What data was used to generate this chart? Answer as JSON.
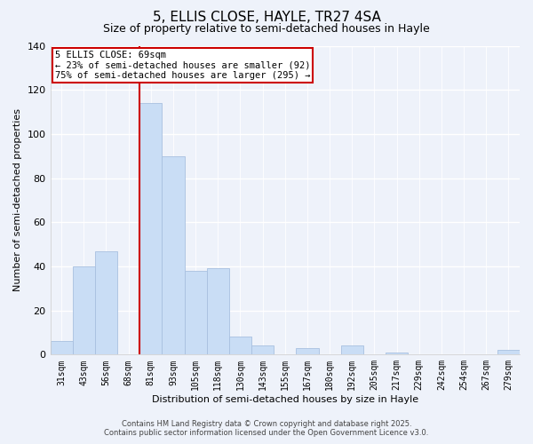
{
  "title": "5, ELLIS CLOSE, HAYLE, TR27 4SA",
  "subtitle": "Size of property relative to semi-detached houses in Hayle",
  "xlabel": "Distribution of semi-detached houses by size in Hayle",
  "ylabel": "Number of semi-detached properties",
  "bar_labels": [
    "31sqm",
    "43sqm",
    "56sqm",
    "68sqm",
    "81sqm",
    "93sqm",
    "105sqm",
    "118sqm",
    "130sqm",
    "143sqm",
    "155sqm",
    "167sqm",
    "180sqm",
    "192sqm",
    "205sqm",
    "217sqm",
    "229sqm",
    "242sqm",
    "254sqm",
    "267sqm",
    "279sqm"
  ],
  "bar_values": [
    6,
    40,
    47,
    0,
    114,
    90,
    38,
    39,
    8,
    4,
    0,
    3,
    0,
    4,
    0,
    1,
    0,
    0,
    0,
    0,
    2
  ],
  "bar_color": "#c9ddf5",
  "bar_edge_color": "#a8c0e0",
  "vline_color": "#cc0000",
  "annotation_title": "5 ELLIS CLOSE: 69sqm",
  "annotation_line1": "← 23% of semi-detached houses are smaller (92)",
  "annotation_line2": "75% of semi-detached houses are larger (295) →",
  "annotation_box_color": "white",
  "annotation_box_edge": "#cc0000",
  "ylim": [
    0,
    140
  ],
  "yticks": [
    0,
    20,
    40,
    60,
    80,
    100,
    120,
    140
  ],
  "footnote1": "Contains HM Land Registry data © Crown copyright and database right 2025.",
  "footnote2": "Contains public sector information licensed under the Open Government Licence v3.0.",
  "bg_color": "#eef2fa",
  "grid_color": "#ffffff",
  "title_fontsize": 11,
  "subtitle_fontsize": 9,
  "axis_label_fontsize": 8,
  "tick_fontsize": 7,
  "footnote_fontsize": 6
}
